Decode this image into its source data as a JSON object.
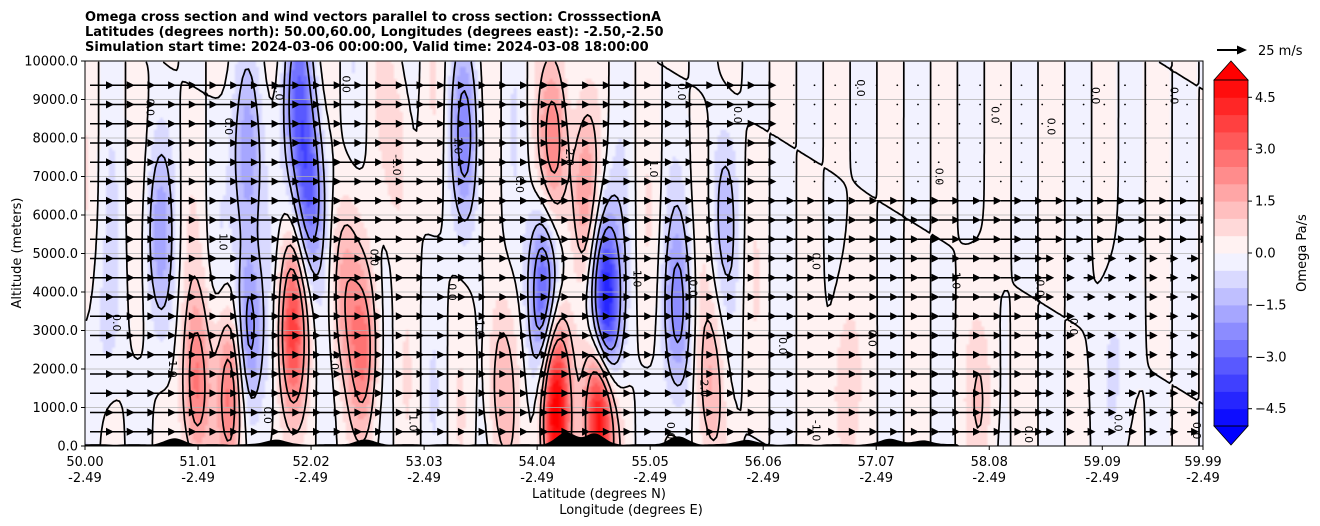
{
  "chart_data": {
    "type": "contour",
    "title_lines": [
      "Omega cross section and wind vectors parallel to cross section: CrosssectionA",
      "Latitudes (degrees north): 50.00,60.00, Longitudes (degrees east): -2.50,-2.50",
      "Simulation start time: 2024-03-06 00:00:00, Valid time: 2024-03-08 18:00:00"
    ],
    "ylabel": "Altitude (meters)",
    "xlabel_primary": "Latitude (degrees N)",
    "xlabel_secondary": "Longitude (degrees E)",
    "ylim": [
      0,
      10000
    ],
    "y_ticks": [
      "0.0",
      "1000.0",
      "2000.0",
      "3000.0",
      "4000.0",
      "5000.0",
      "6000.0",
      "7000.0",
      "8000.0",
      "9000.0",
      "10000.0"
    ],
    "x_range": [
      50.0,
      59.99
    ],
    "x_ticks": [
      {
        "value": 50.0,
        "lat": "50.00",
        "lon": "-2.49"
      },
      {
        "value": 51.01,
        "lat": "51.01",
        "lon": "-2.49"
      },
      {
        "value": 52.02,
        "lat": "52.02",
        "lon": "-2.49"
      },
      {
        "value": 53.03,
        "lat": "53.03",
        "lon": "-2.49"
      },
      {
        "value": 54.04,
        "lat": "54.04",
        "lon": "-2.49"
      },
      {
        "value": 55.05,
        "lat": "55.05",
        "lon": "-2.49"
      },
      {
        "value": 56.06,
        "lat": "56.06",
        "lon": "-2.49"
      },
      {
        "value": 57.07,
        "lat": "57.07",
        "lon": "-2.49"
      },
      {
        "value": 58.08,
        "lat": "58.08",
        "lon": "-2.49"
      },
      {
        "value": 59.09,
        "lat": "59.09",
        "lon": "-2.49"
      },
      {
        "value": 59.99,
        "lat": "59.99",
        "lon": "-2.49"
      }
    ],
    "colorbar": {
      "label": "Omega Pa/s",
      "range": [
        -5.0,
        5.0
      ],
      "ticks": [
        -4.5,
        -3.0,
        -1.5,
        0.0,
        1.5,
        3.0,
        4.5
      ],
      "tick_labels": [
        "−4.5",
        "−3.0",
        "−1.5",
        "0.0",
        "1.5",
        "3.0",
        "4.5"
      ],
      "extend": "both",
      "colormap": "bwr"
    },
    "quiver_key": {
      "label": "25 m/s",
      "speed": 25
    },
    "contour_label_values": [
      "0.0",
      "1.0",
      "-1.0",
      "2.0",
      "-2.0"
    ],
    "omega_features": [
      {
        "lat": 54.2,
        "alt": 1000,
        "value": 5.5
      },
      {
        "lat": 54.1,
        "alt": 4000,
        "value": -3.5
      },
      {
        "lat": 54.2,
        "alt": 7800,
        "value": 2.5
      },
      {
        "lat": 54.6,
        "alt": 800,
        "value": 6.0
      },
      {
        "lat": 54.65,
        "alt": 3500,
        "value": -5.5
      },
      {
        "lat": 54.45,
        "alt": 6500,
        "value": 1.8
      },
      {
        "lat": 51.85,
        "alt": 3000,
        "value": 3.5
      },
      {
        "lat": 52.0,
        "alt": 6500,
        "value": -3.0
      },
      {
        "lat": 51.9,
        "alt": 9000,
        "value": -2.5
      },
      {
        "lat": 51.45,
        "alt": 3000,
        "value": -3.0
      },
      {
        "lat": 51.45,
        "alt": 7500,
        "value": -2.0
      },
      {
        "lat": 51.0,
        "alt": 1500,
        "value": 2.5
      },
      {
        "lat": 51.3,
        "alt": 1500,
        "value": 3.0
      },
      {
        "lat": 50.65,
        "alt": 5500,
        "value": -1.5
      },
      {
        "lat": 52.3,
        "alt": 4000,
        "value": 1.5
      },
      {
        "lat": 52.5,
        "alt": 2500,
        "value": 2.5
      },
      {
        "lat": 53.4,
        "alt": 8000,
        "value": -2.0
      },
      {
        "lat": 55.3,
        "alt": 3500,
        "value": -2.0
      },
      {
        "lat": 55.6,
        "alt": 1500,
        "value": 1.5
      },
      {
        "lat": 55.7,
        "alt": 6000,
        "value": -1.0
      },
      {
        "lat": 56.8,
        "alt": 1500,
        "value": 1.0
      },
      {
        "lat": 53.7,
        "alt": 1500,
        "value": 1.5
      },
      {
        "lat": 52.8,
        "alt": 8000,
        "value": 1.0
      },
      {
        "lat": 50.2,
        "alt": 3000,
        "value": -0.6
      },
      {
        "lat": 58.0,
        "alt": 1200,
        "value": 1.0
      },
      {
        "lat": 59.2,
        "alt": 2000,
        "value": -0.6
      }
    ],
    "wind": {
      "direction": "rightward",
      "strong_region_lat_max": 56.0,
      "strong_speed_ms": 25,
      "weak_speed_ms": 3
    },
    "terrain_peaks": [
      {
        "lat": 50.8,
        "height_m": 150
      },
      {
        "lat": 51.7,
        "height_m": 130
      },
      {
        "lat": 52.5,
        "height_m": 120
      },
      {
        "lat": 54.3,
        "height_m": 300
      },
      {
        "lat": 54.55,
        "height_m": 280
      },
      {
        "lat": 55.3,
        "height_m": 200
      },
      {
        "lat": 55.9,
        "height_m": 120
      },
      {
        "lat": 57.2,
        "height_m": 150
      },
      {
        "lat": 57.5,
        "height_m": 100
      }
    ]
  }
}
